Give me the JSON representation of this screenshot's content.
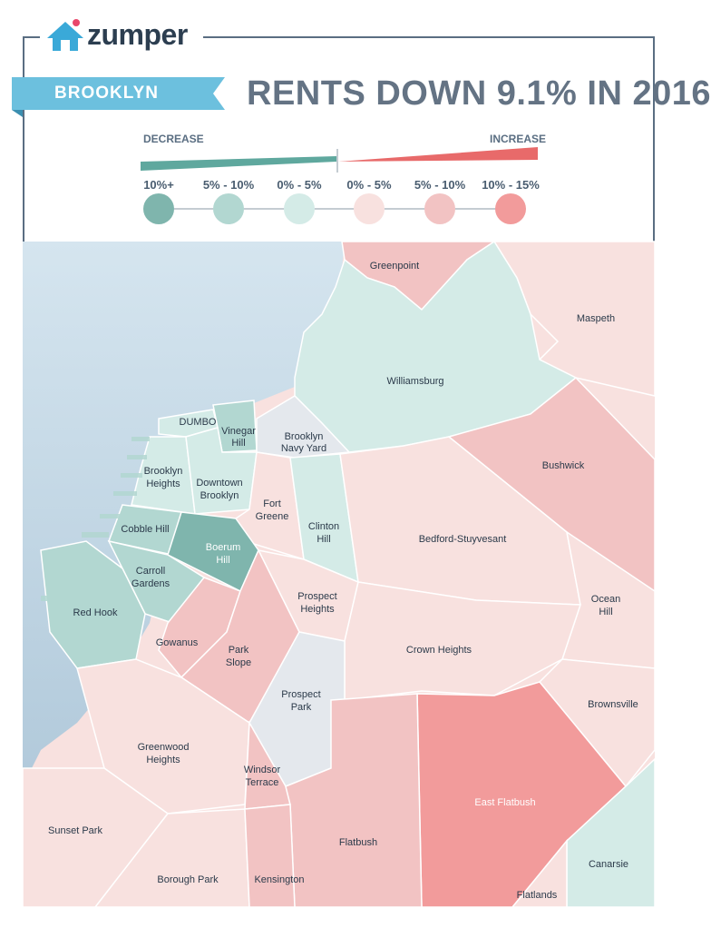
{
  "header": {
    "brand": "zumper",
    "borough": "BROOKLYN",
    "headline": "RENTS DOWN 9.1% IN 2016"
  },
  "legend": {
    "decrease_label": "DECREASE",
    "increase_label": "INCREASE",
    "items": [
      {
        "range": "10%+",
        "color": "#7fb5ad"
      },
      {
        "range": "5% - 10%",
        "color": "#b2d7d1"
      },
      {
        "range": "0% - 5%",
        "color": "#d4ebe7"
      },
      {
        "range": "0% - 5%",
        "color": "#f8e1df"
      },
      {
        "range": "5% - 10%",
        "color": "#f2c3c3"
      },
      {
        "range": "10% - 15%",
        "color": "#f29b9b"
      }
    ]
  },
  "colors": {
    "water": "#c4d9e6",
    "no_data": "#e4e8ed",
    "frame": "#5a6e82",
    "ribbon": "#6cc0de"
  },
  "neighborhoods": [
    {
      "name": "Greenpoint",
      "change": "5% - 10%"
    },
    {
      "name": "Maspeth",
      "change": "0% - 5%"
    },
    {
      "name": "Williamsburg",
      "change": "0% - 5%"
    },
    {
      "name": "DUMBO",
      "change": "0% - 5%"
    },
    {
      "name": "Vinegar Hill",
      "change": "5% - 10%"
    },
    {
      "name": "Brooklyn Navy Yard",
      "change": "no data"
    },
    {
      "name": "Brooklyn Heights",
      "change": "0% - 5%"
    },
    {
      "name": "Downtown Brooklyn",
      "change": "0% - 5%"
    },
    {
      "name": "Fort Greene",
      "change": "0% - 5%"
    },
    {
      "name": "Clinton Hill",
      "change": "0% - 5%"
    },
    {
      "name": "Bushwick",
      "change": "5% - 10%"
    },
    {
      "name": "Bedford-Stuyvesant",
      "change": "0% - 5%"
    },
    {
      "name": "Cobble Hill",
      "change": "5% - 10%"
    },
    {
      "name": "Boerum Hill",
      "change": "10%+"
    },
    {
      "name": "Carroll Gardens",
      "change": "5% - 10%"
    },
    {
      "name": "Red Hook",
      "change": "5% - 10%"
    },
    {
      "name": "Prospect Heights",
      "change": "0% - 5%"
    },
    {
      "name": "Ocean Hill",
      "change": "0% - 5%"
    },
    {
      "name": "Gowanus",
      "change": "5% - 10%"
    },
    {
      "name": "Park Slope",
      "change": "5% - 10%"
    },
    {
      "name": "Crown Heights",
      "change": "0% - 5%"
    },
    {
      "name": "Prospect Park",
      "change": "no data"
    },
    {
      "name": "Brownsville",
      "change": "0% - 5%"
    },
    {
      "name": "Greenwood Heights",
      "change": "0% - 5%"
    },
    {
      "name": "Windsor Terrace",
      "change": "5% - 10%"
    },
    {
      "name": "East Flatbush",
      "change": "10% - 15%"
    },
    {
      "name": "Sunset Park",
      "change": "0% - 5%"
    },
    {
      "name": "Flatbush",
      "change": "5% - 10%"
    },
    {
      "name": "Canarsie",
      "change": "0% - 5%"
    },
    {
      "name": "Borough Park",
      "change": "0% - 5%"
    },
    {
      "name": "Kensington",
      "change": "5% - 10%"
    },
    {
      "name": "Flatlands",
      "change": "0% - 5%"
    }
  ]
}
